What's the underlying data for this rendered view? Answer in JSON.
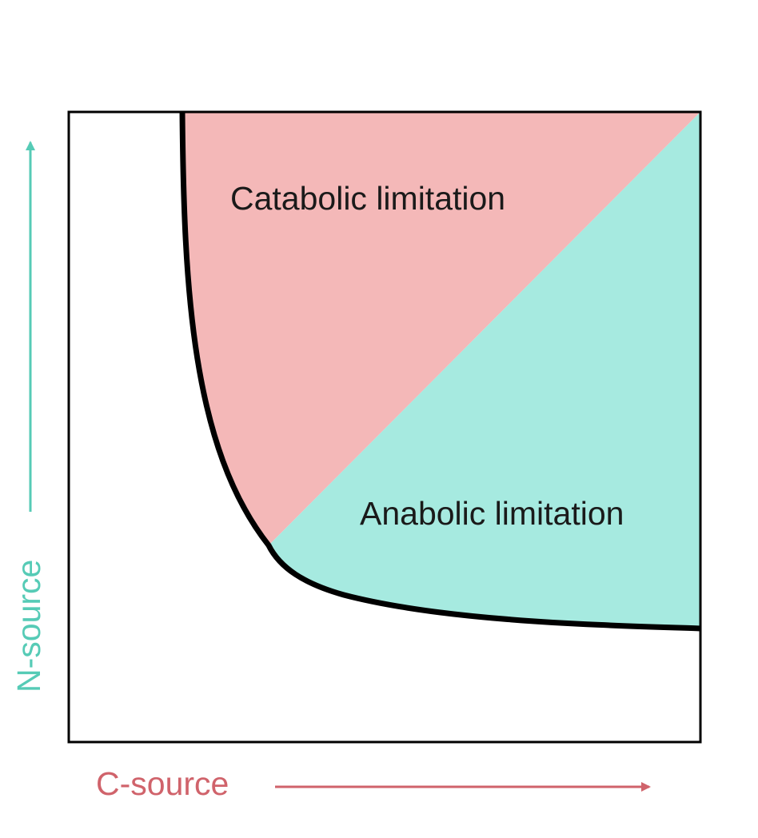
{
  "diagram": {
    "regions": {
      "catabolic": {
        "label": "Catabolic limitation",
        "color": "#f4b8b8"
      },
      "anabolic": {
        "label": "Anabolic limitation",
        "color": "#a6eae0"
      }
    },
    "axes": {
      "x": {
        "label": "C-source",
        "color": "#d0636b"
      },
      "y": {
        "label": "N-source",
        "color": "#56cbb6"
      }
    },
    "boundary_color": "#000000"
  }
}
